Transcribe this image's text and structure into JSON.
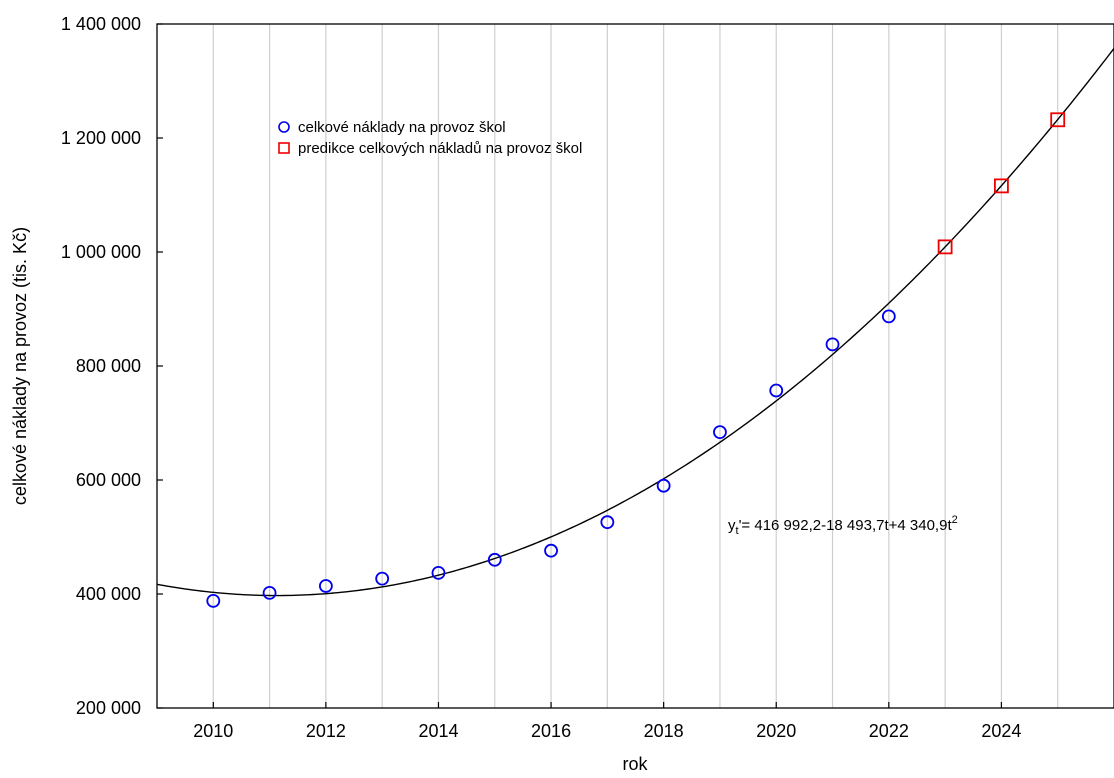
{
  "chart_data": {
    "type": "scatter",
    "title": "",
    "xlabel": "rok",
    "ylabel": "celkové náklady na provoz (tis. Kč)",
    "xlim": [
      2009,
      2026
    ],
    "ylim": [
      200000,
      1400000
    ],
    "x_ticks": [
      2010,
      2012,
      2014,
      2016,
      2018,
      2020,
      2022,
      2024
    ],
    "x_tick_labels": [
      "2010",
      "2012",
      "2014",
      "2016",
      "2018",
      "2020",
      "2022",
      "2024"
    ],
    "y_ticks": [
      200000,
      400000,
      600000,
      800000,
      1000000,
      1200000,
      1400000
    ],
    "y_tick_labels": [
      "200 000",
      "400 000",
      "600 000",
      "800 000",
      "1 000 000",
      "1 200 000",
      "1 400 000"
    ],
    "grid": "vertical",
    "legend_position": "top-left",
    "series": [
      {
        "name": "celkové náklady na provoz škol",
        "marker": "circle",
        "color": "#0000ee",
        "x": [
          2010,
          2011,
          2012,
          2013,
          2014,
          2015,
          2016,
          2017,
          2018,
          2019,
          2020,
          2021,
          2022
        ],
        "y": [
          388000,
          402000,
          414000,
          427000,
          437000,
          460000,
          476000,
          526000,
          590000,
          684000,
          757000,
          838000,
          887000
        ]
      },
      {
        "name": "predikce celkových nákladů na provoz škol",
        "marker": "square",
        "color": "#ee0000",
        "x": [
          2023,
          2024,
          2025
        ],
        "y": [
          1009000,
          1116000,
          1232000
        ]
      }
    ],
    "trend": {
      "color": "#000000",
      "origin_year": 2009,
      "coefficients": [
        416992.2,
        -18493.7,
        4340.9
      ]
    },
    "annotation": {
      "y_symbol": "y",
      "subscript": "t",
      "mid": "'= 416 992,2-18 493,7t+4 340,9t",
      "superscript": "2"
    }
  }
}
